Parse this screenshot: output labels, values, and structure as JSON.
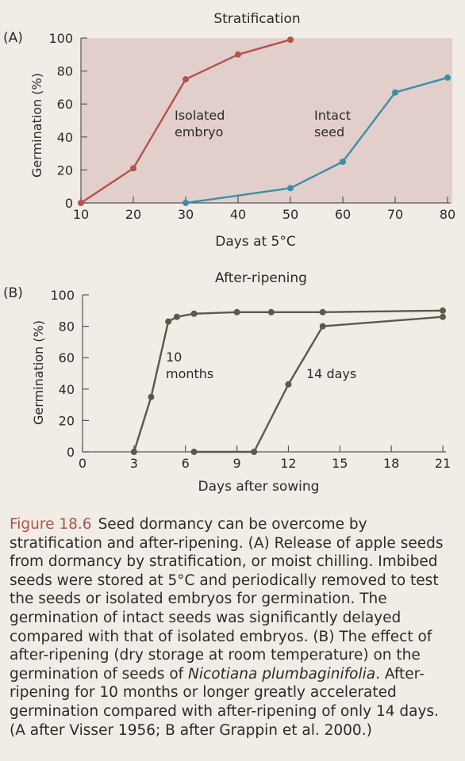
{
  "chart_data": [
    {
      "type": "line",
      "panel_label": "(A)",
      "title": "Stratification",
      "xlabel": "Days at 5°C",
      "ylabel": "Germination (%)",
      "xlim": [
        10,
        80
      ],
      "ylim": [
        0,
        100
      ],
      "x_ticks": [
        10,
        20,
        30,
        40,
        50,
        60,
        70,
        80
      ],
      "y_ticks": [
        0,
        20,
        40,
        60,
        80,
        100
      ],
      "series": [
        {
          "name": "Isolated embryo",
          "label_lines": [
            "Isolated",
            "embryo"
          ],
          "color": "#b5524b",
          "x": [
            10,
            20,
            30,
            40,
            50
          ],
          "y": [
            0,
            21,
            75,
            90,
            99
          ]
        },
        {
          "name": "Intact seed",
          "label_lines": [
            "Intact",
            "seed"
          ],
          "color": "#3b8fa8",
          "x": [
            30,
            50,
            60,
            70,
            80
          ],
          "y": [
            0,
            9,
            25,
            67,
            76
          ]
        }
      ]
    },
    {
      "type": "line",
      "panel_label": "(B)",
      "title": "After-ripening",
      "xlabel": "Days after sowing",
      "ylabel": "Germination (%)",
      "xlim": [
        0,
        21
      ],
      "ylim": [
        0,
        100
      ],
      "x_ticks": [
        0,
        3,
        6,
        9,
        12,
        15,
        18,
        21
      ],
      "y_ticks": [
        0,
        20,
        40,
        60,
        80,
        100
      ],
      "series": [
        {
          "name": "10 months",
          "label_lines": [
            "10",
            "months"
          ],
          "color": "#5a5a46",
          "x": [
            3,
            4,
            5,
            5.5,
            6.5,
            9,
            11,
            14,
            21
          ],
          "y": [
            0,
            35,
            83,
            86,
            88,
            89,
            89,
            89,
            90
          ]
        },
        {
          "name": "14 days",
          "label_lines": [
            "14 days"
          ],
          "color": "#5a5a46",
          "x": [
            6.5,
            10,
            12,
            14,
            21
          ],
          "y": [
            0,
            0,
            43,
            80,
            86
          ]
        }
      ]
    }
  ],
  "caption": {
    "fig_label": "Figure 18.6",
    "text_before_italic": "Seed dormancy can be overcome by stratification and after-ripening. (A) Release of apple seeds from dormancy by stratification, or moist chilling. Imbibed seeds were stored at 5°C and periodically removed to test the seeds or isolated embryos for germination. The germination of intact seeds was significantly delayed compared with that of isolated embryos. (B) The effect of after-ripening (dry storage at room temperature) on the germination of seeds of",
    "italic_text": "Nicotiana plumbaginifolia",
    "text_after_italic": ". After-ripening for 10 months or longer greatly accelerated germination compared with after-ripening of only 14 days. (A after Visser 1956; B after Grappin et al. 2000.)"
  }
}
